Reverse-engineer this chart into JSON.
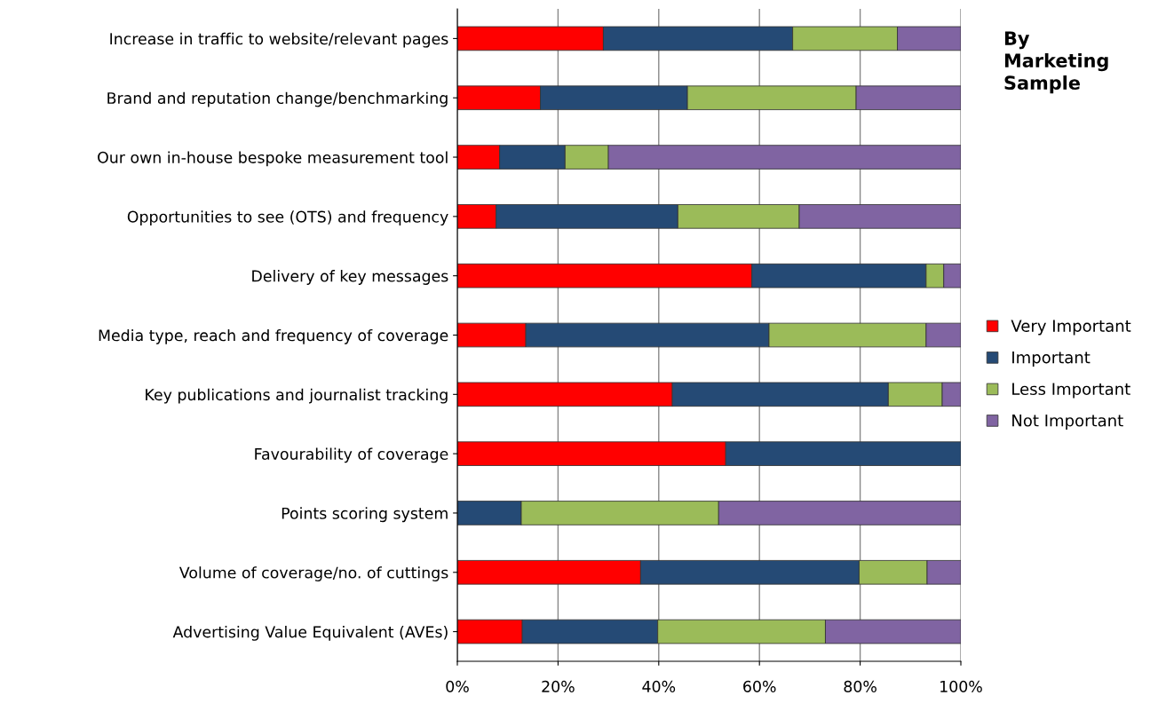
{
  "chart_data": {
    "type": "bar",
    "orientation": "horizontal",
    "stacked": true,
    "title": "By\nMarketing\nSample",
    "categories": [
      "Increase in traffic to website/relevant pages",
      "Brand and reputation change/benchmarking",
      "Our own in-house bespoke measurement tool",
      "Opportunities to see (OTS) and frequency",
      "Delivery of key messages",
      "Media type, reach and frequency of coverage",
      "Key publications and journalist tracking",
      "Favourability of coverage",
      "Points scoring system",
      "Volume of coverage/no. of cuttings",
      "Advertising Value Equivalent (AVEs)"
    ],
    "series": [
      {
        "name": "Very Important",
        "color": "#ff0000",
        "values": [
          29.0,
          16.5,
          8.4,
          7.7,
          58.5,
          13.6,
          42.7,
          53.3,
          0,
          36.4,
          12.9
        ]
      },
      {
        "name": "Important",
        "color": "#254a75",
        "values": [
          37.6,
          29.2,
          13.0,
          36.1,
          34.6,
          48.3,
          42.9,
          46.7,
          12.7,
          43.4,
          26.9
        ]
      },
      {
        "name": "Less Important",
        "color": "#9bbb59",
        "values": [
          20.8,
          33.5,
          8.6,
          24.1,
          3.5,
          31.2,
          10.7,
          0,
          39.2,
          13.5,
          33.3
        ]
      },
      {
        "name": "Not Important",
        "color": "#8064a2",
        "values": [
          12.6,
          20.8,
          70.0,
          32.1,
          3.4,
          6.9,
          3.7,
          0,
          48.1,
          6.7,
          26.9
        ]
      }
    ],
    "xlim": [
      0,
      100
    ],
    "xticks": [
      {
        "value": 0,
        "label": "0%"
      },
      {
        "value": 20,
        "label": "20%"
      },
      {
        "value": 40,
        "label": "40%"
      },
      {
        "value": 60,
        "label": "60%"
      },
      {
        "value": 80,
        "label": "80%"
      },
      {
        "value": 100,
        "label": "100%"
      }
    ],
    "grid": "x",
    "legend": "right"
  }
}
